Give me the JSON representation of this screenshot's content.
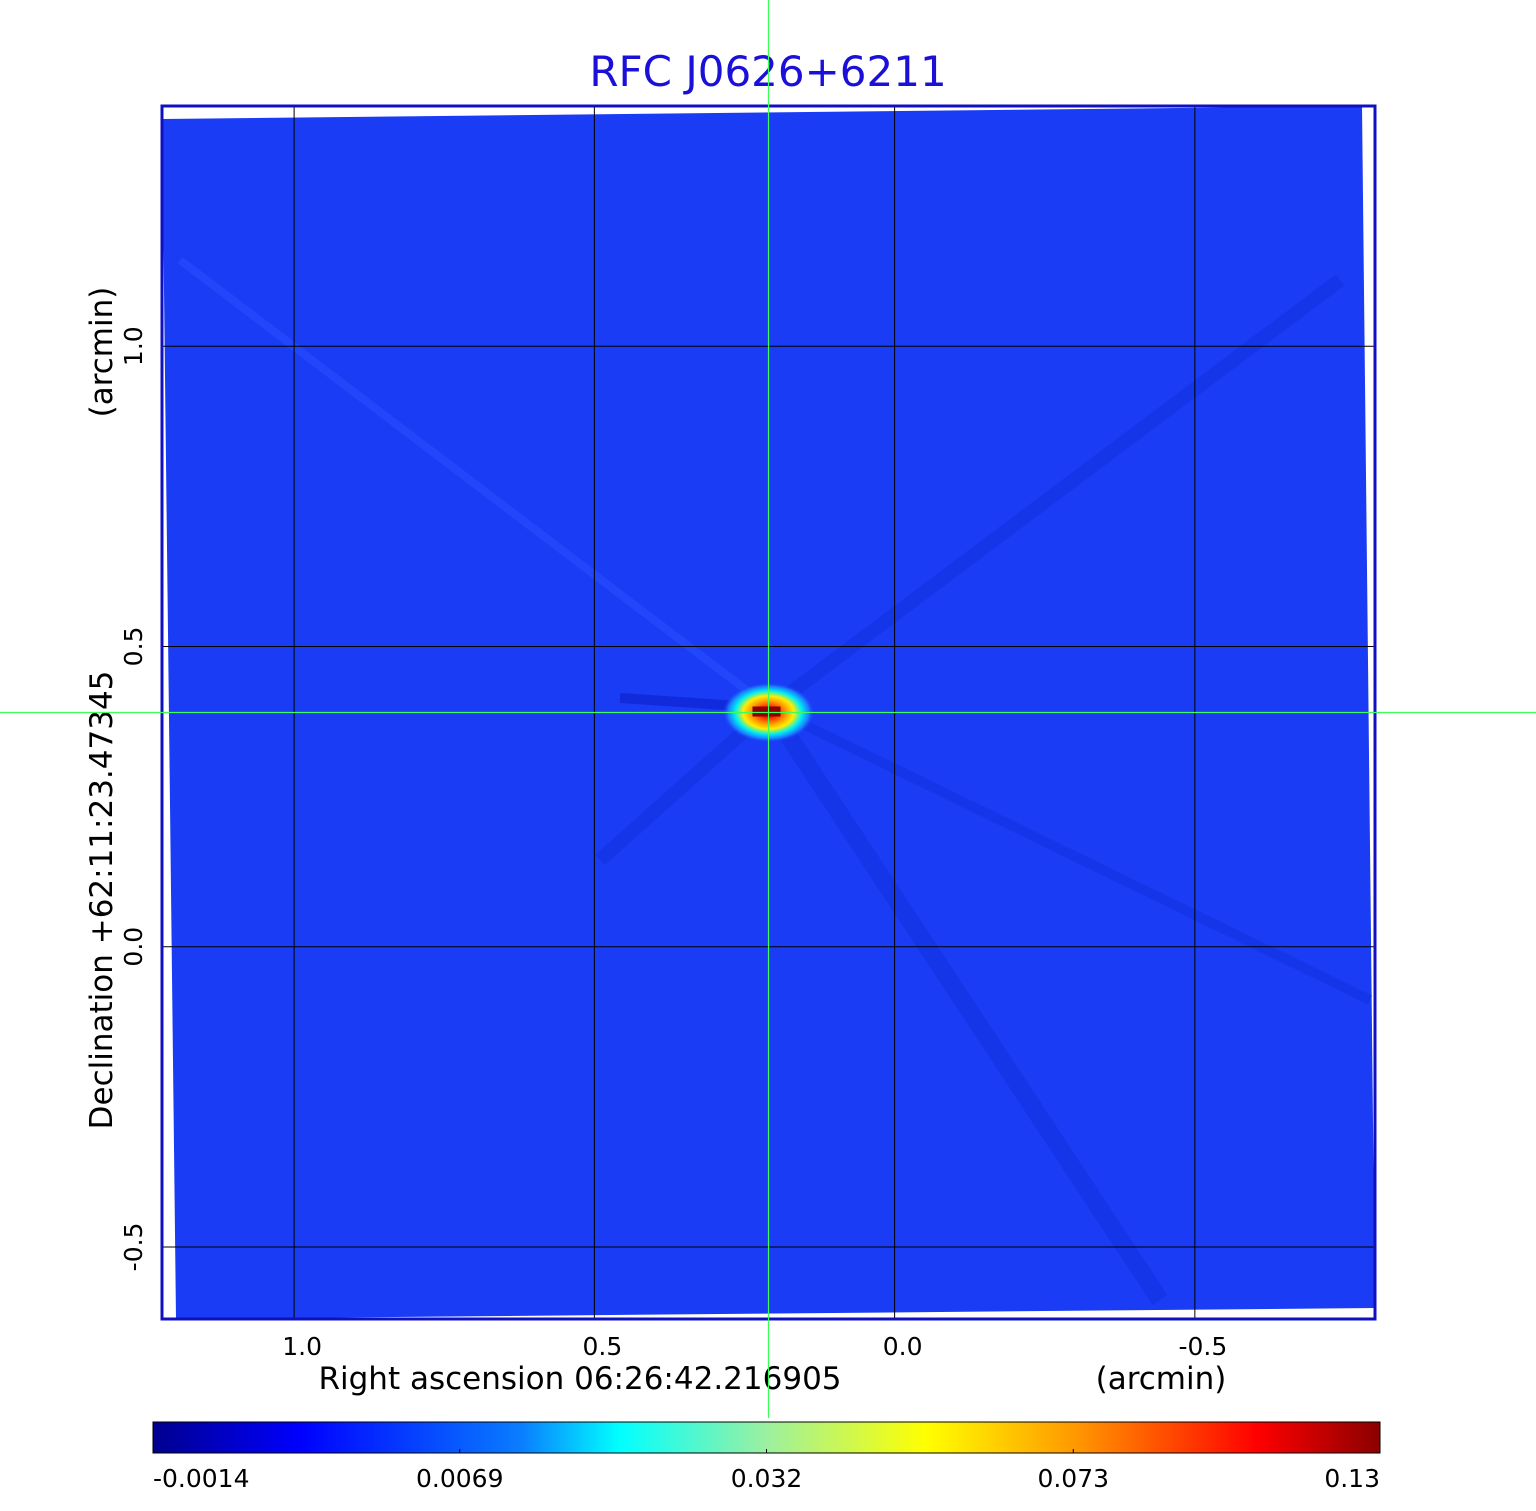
{
  "chart_data": {
    "type": "heatmap",
    "title": "RFC J0626+6211",
    "xlabel": "Right ascension  06:26:42.216905",
    "xunit": "(arcmin)",
    "ylabel": "Declination  +62:11:23.47345",
    "yunit": "(arcmin)",
    "xlim": [
      1.22,
      -0.8
    ],
    "ylim": [
      -0.62,
      1.4
    ],
    "xticks": [
      1.0,
      0.5,
      0.0,
      -0.5
    ],
    "xtick_labels": [
      "1.0",
      "0.5",
      "0.0",
      "-0.5"
    ],
    "yticks": [
      1.0,
      0.5,
      0.0,
      -0.5
    ],
    "ytick_labels": [
      "1.0",
      "0.5",
      "0.0",
      "-0.5"
    ],
    "grid": true,
    "crosshair": {
      "x": 0.21,
      "y": 0.39
    },
    "peak": {
      "x": 0.21,
      "y": 0.39,
      "value": 0.13
    },
    "colormap": "jet",
    "colorbar": {
      "position": "bottom",
      "tick_values": [
        -0.0014,
        0.0069,
        0.032,
        0.073,
        0.13
      ],
      "tick_labels": [
        "-0.0014",
        "0.0069",
        "0.032",
        "0.073",
        "0.13"
      ]
    },
    "colors": {
      "background_field": "#1a3cf5",
      "frame": "#1010c0",
      "crosshair": "#3cff5a",
      "title": "#1a10d8"
    }
  }
}
